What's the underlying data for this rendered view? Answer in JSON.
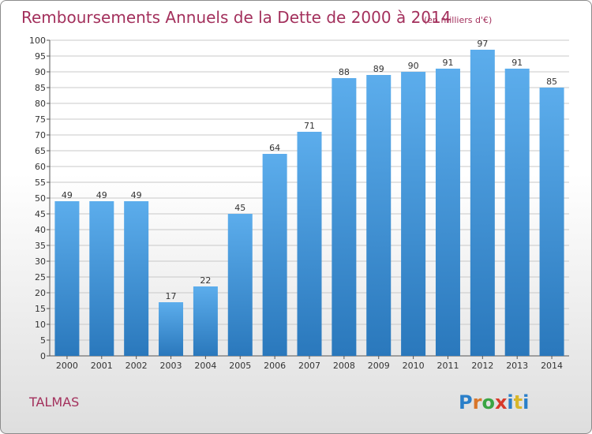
{
  "chart_data": {
    "type": "bar",
    "title": "Remboursements Annuels de la Dette de 2000 à 2014",
    "subtitle": "(en milliers d'€)",
    "categories": [
      "2000",
      "2001",
      "2002",
      "2003",
      "2004",
      "2005",
      "2006",
      "2007",
      "2008",
      "2009",
      "2010",
      "2011",
      "2012",
      "2013",
      "2014"
    ],
    "values": [
      49,
      49,
      49,
      17,
      22,
      45,
      64,
      71,
      88,
      89,
      90,
      91,
      97,
      91,
      85
    ],
    "ylim": [
      0,
      100
    ],
    "ytick_step": 5,
    "xlabel": "",
    "ylabel": "",
    "grid": true,
    "bar_color": "#4a9de0"
  },
  "footer": {
    "commune": "TALMAS",
    "logo": "Proxiti"
  },
  "colors": {
    "title": "#a3305c",
    "logo_letters": [
      "#2a7fc9",
      "#d8762a",
      "#3aa544",
      "#d83a2a",
      "#2a7fc9",
      "#d8b62a",
      "#2a7fc9"
    ]
  }
}
